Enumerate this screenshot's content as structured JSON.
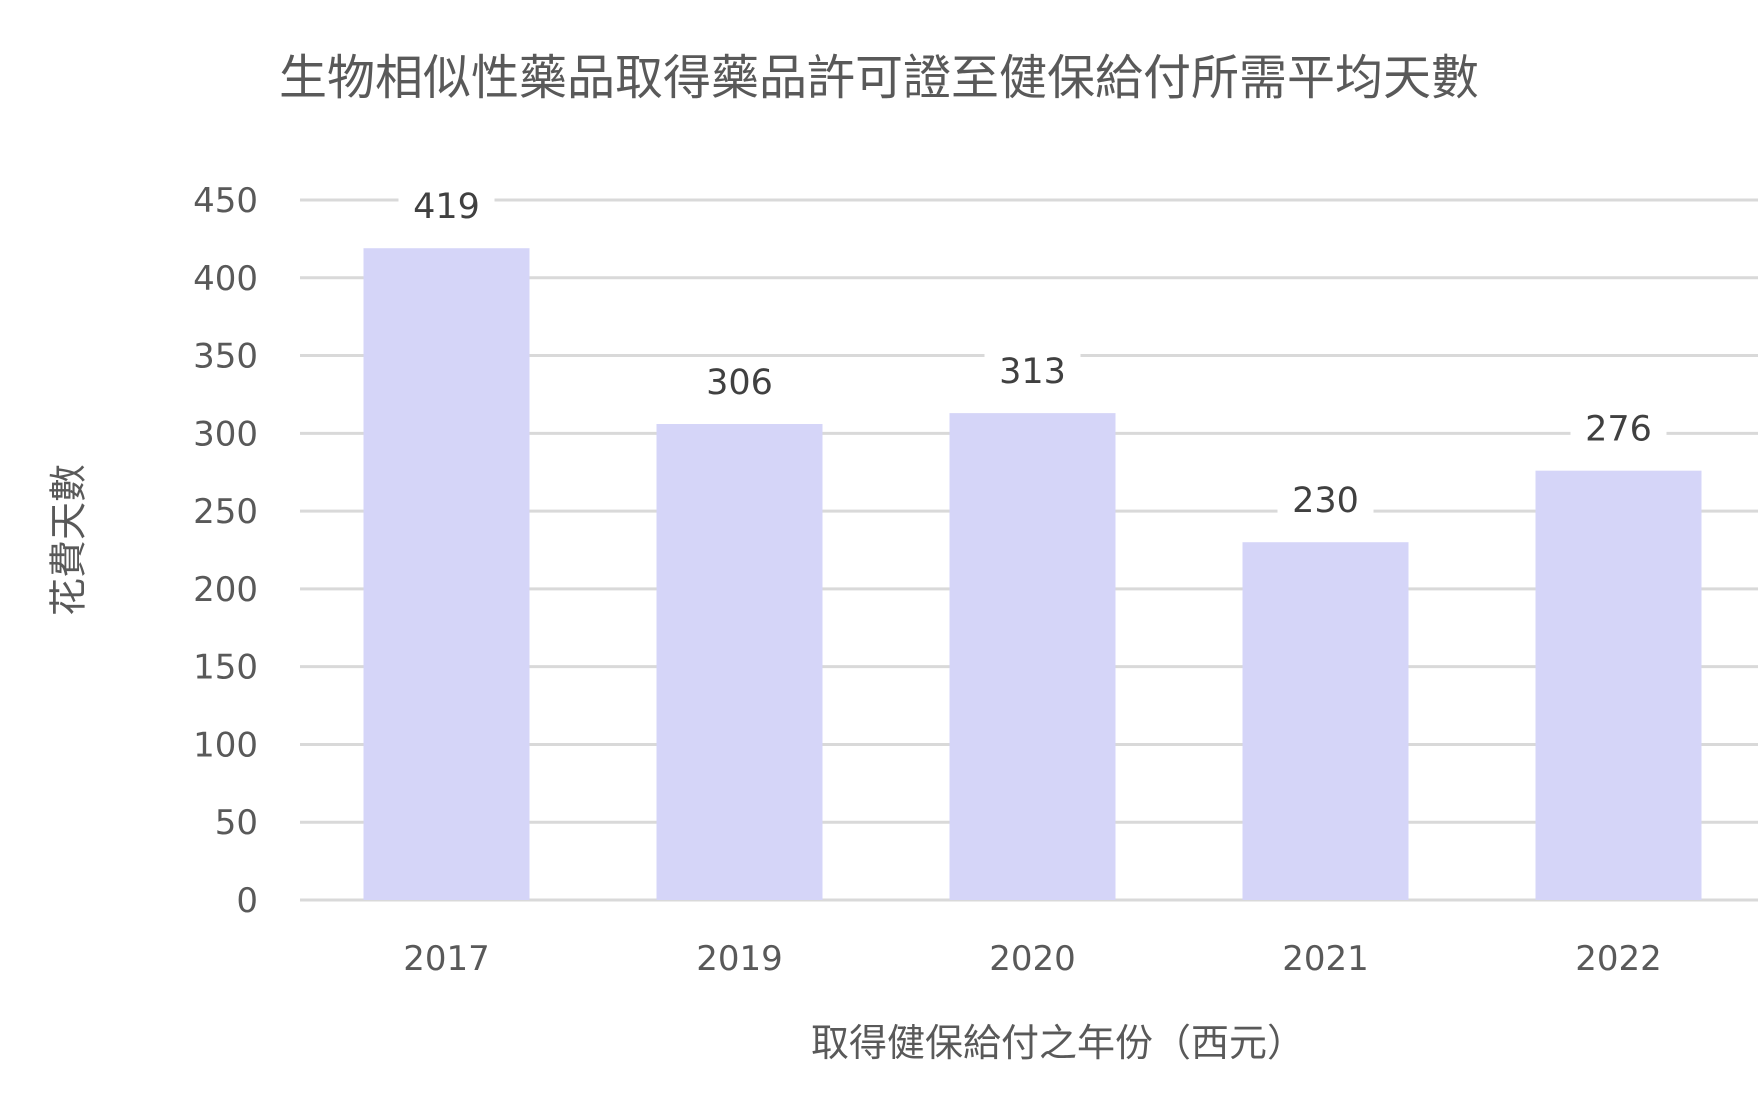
{
  "chart_data": {
    "type": "bar",
    "title": "生物相似性藥品取得藥品許可證至健保給付所需平均天數",
    "xlabel": "取得健保給付之年份（西元）",
    "ylabel": "花費天數",
    "categories": [
      "2017",
      "2019",
      "2020",
      "2021",
      "2022"
    ],
    "values": [
      419,
      306,
      313,
      230,
      276
    ],
    "data_labels": [
      "419",
      "306",
      "313",
      "230",
      "276"
    ],
    "ylim": [
      0,
      450
    ],
    "yticks": [
      0,
      50,
      100,
      150,
      200,
      250,
      300,
      350,
      400,
      450
    ],
    "ytick_labels": [
      "0",
      "50",
      "100",
      "150",
      "200",
      "250",
      "300",
      "350",
      "400",
      "450"
    ],
    "grid": true,
    "legend": "none",
    "colors": {
      "bar": "#d5d5f8",
      "grid": "#d9d9d9",
      "text": "#595959",
      "data_label": "#404040"
    }
  }
}
